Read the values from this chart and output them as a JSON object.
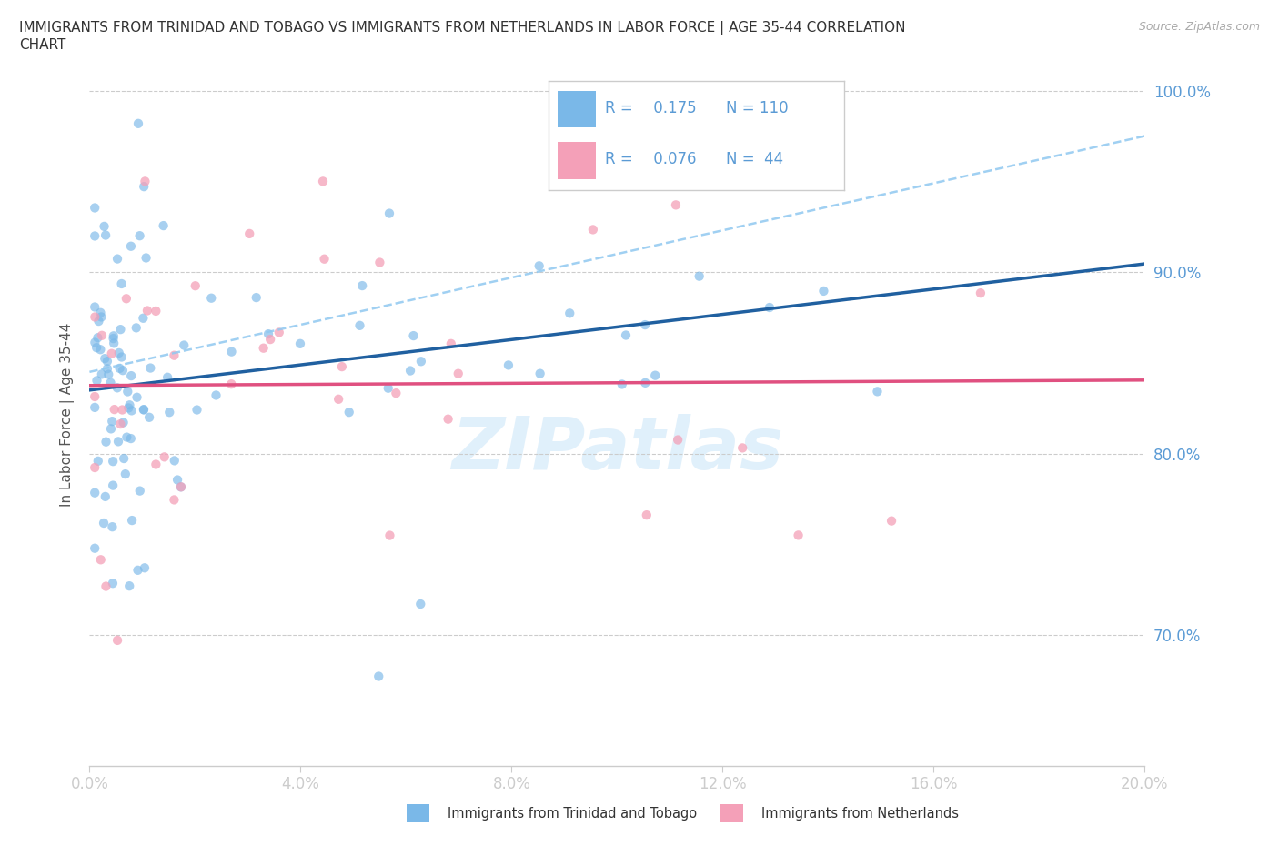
{
  "title_line1": "IMMIGRANTS FROM TRINIDAD AND TOBAGO VS IMMIGRANTS FROM NETHERLANDS IN LABOR FORCE | AGE 35-44 CORRELATION",
  "title_line2": "CHART",
  "source_text": "Source: ZipAtlas.com",
  "ylabel": "In Labor Force | Age 35-44",
  "color_tt": "#7ab8e8",
  "color_nl": "#f4a0b8",
  "trend_color_tt": "#2060a0",
  "trend_color_nl": "#e05080",
  "trend_color_dashed": "#90c8f0",
  "xlim": [
    0.0,
    0.2
  ],
  "ylim": [
    0.628,
    1.015
  ],
  "yticks": [
    0.7,
    0.8,
    0.9,
    1.0
  ],
  "xticks": [
    0.0,
    0.04,
    0.08,
    0.12,
    0.16,
    0.2
  ],
  "watermark": "ZIPatlas",
  "legend_r_tt": "0.175",
  "legend_n_tt": "110",
  "legend_r_nl": "0.076",
  "legend_n_nl": "44",
  "tick_color": "#5b9bd5",
  "grid_color": "#cccccc",
  "title_color": "#333333",
  "source_color": "#aaaaaa",
  "ylabel_color": "#555555",
  "legend_border_color": "#cccccc",
  "bottom_legend_tt": "Immigrants from Trinidad and Tobago",
  "bottom_legend_nl": "Immigrants from Netherlands"
}
